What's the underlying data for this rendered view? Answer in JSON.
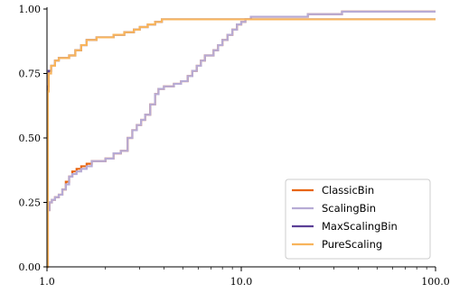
{
  "chart_data": {
    "type": "line",
    "step": true,
    "x_scale": "log",
    "xlim": [
      1.0,
      100.0
    ],
    "ylim": [
      0.0,
      1.0
    ],
    "x_ticks": [
      1.0,
      10.0,
      100.0
    ],
    "x_tick_labels": [
      "1.0",
      "10.0",
      "100.0"
    ],
    "y_ticks": [
      0.0,
      0.25,
      0.5,
      0.75,
      1.0
    ],
    "y_tick_labels": [
      "0.00",
      "0.25",
      "0.50",
      "0.75",
      "1.00"
    ],
    "grid": false,
    "legend_position": "lower-right",
    "series": [
      {
        "name": "ClassicBin",
        "color": "#e8650e",
        "x": [
          1.0,
          1.01,
          1.03,
          1.06,
          1.1,
          1.15,
          1.2,
          1.25,
          1.3,
          1.35,
          1.42,
          1.5,
          1.6,
          1.7,
          1.85,
          2.0,
          2.2,
          2.4,
          2.6,
          2.75,
          2.9,
          3.05,
          3.2,
          3.4,
          3.6,
          3.75,
          3.85,
          4.0,
          4.2,
          4.5,
          4.9,
          5.3,
          5.6,
          5.9,
          6.2,
          6.5,
          6.8,
          7.2,
          7.6,
          8.0,
          8.5,
          9.0,
          9.5,
          10.0,
          10.5,
          11.2,
          12.0,
          22.0,
          33.0,
          100.0
        ],
        "y": [
          0.0,
          0.22,
          0.25,
          0.26,
          0.27,
          0.28,
          0.3,
          0.33,
          0.35,
          0.37,
          0.38,
          0.39,
          0.4,
          0.41,
          0.41,
          0.42,
          0.44,
          0.45,
          0.5,
          0.53,
          0.55,
          0.57,
          0.59,
          0.63,
          0.67,
          0.69,
          0.69,
          0.7,
          0.7,
          0.71,
          0.72,
          0.74,
          0.76,
          0.78,
          0.8,
          0.82,
          0.82,
          0.84,
          0.86,
          0.88,
          0.9,
          0.92,
          0.94,
          0.95,
          0.96,
          0.97,
          0.97,
          0.98,
          0.99,
          0.99
        ]
      },
      {
        "name": "ScalingBin",
        "color": "#b7abd5",
        "x": [
          1.0,
          1.01,
          1.03,
          1.06,
          1.1,
          1.15,
          1.2,
          1.25,
          1.3,
          1.35,
          1.42,
          1.5,
          1.6,
          1.7,
          1.85,
          2.0,
          2.2,
          2.4,
          2.6,
          2.75,
          2.9,
          3.05,
          3.2,
          3.4,
          3.6,
          3.75,
          3.85,
          4.0,
          4.2,
          4.5,
          4.9,
          5.3,
          5.6,
          5.9,
          6.2,
          6.5,
          6.8,
          7.2,
          7.6,
          8.0,
          8.5,
          9.0,
          9.5,
          10.0,
          10.5,
          11.2,
          12.0,
          22.0,
          33.0,
          100.0
        ],
        "y": [
          0.0,
          0.22,
          0.25,
          0.26,
          0.27,
          0.28,
          0.3,
          0.32,
          0.35,
          0.36,
          0.37,
          0.38,
          0.39,
          0.41,
          0.41,
          0.42,
          0.44,
          0.45,
          0.5,
          0.53,
          0.55,
          0.57,
          0.59,
          0.63,
          0.67,
          0.69,
          0.69,
          0.7,
          0.7,
          0.71,
          0.72,
          0.74,
          0.76,
          0.78,
          0.8,
          0.82,
          0.82,
          0.84,
          0.86,
          0.88,
          0.9,
          0.92,
          0.94,
          0.95,
          0.96,
          0.97,
          0.97,
          0.98,
          0.99,
          0.99
        ]
      },
      {
        "name": "MaxScalingBin",
        "color": "#5b3f96",
        "x": [
          1.0,
          1.01,
          1.02,
          1.05,
          1.1,
          1.15,
          1.2,
          1.3,
          1.4,
          1.5,
          1.6,
          1.8,
          2.0,
          2.2,
          2.5,
          2.8,
          3.0,
          3.3,
          3.6,
          3.9,
          100.0
        ],
        "y": [
          0.0,
          0.7,
          0.76,
          0.78,
          0.8,
          0.81,
          0.81,
          0.82,
          0.84,
          0.86,
          0.88,
          0.89,
          0.89,
          0.9,
          0.91,
          0.92,
          0.93,
          0.94,
          0.95,
          0.96,
          0.96
        ]
      },
      {
        "name": "PureScaling",
        "color": "#f8b45c",
        "x": [
          1.0,
          1.01,
          1.02,
          1.05,
          1.1,
          1.15,
          1.2,
          1.3,
          1.4,
          1.5,
          1.6,
          1.8,
          2.0,
          2.2,
          2.5,
          2.8,
          3.0,
          3.3,
          3.6,
          3.9,
          100.0
        ],
        "y": [
          0.0,
          0.68,
          0.75,
          0.78,
          0.8,
          0.81,
          0.81,
          0.82,
          0.84,
          0.86,
          0.88,
          0.89,
          0.89,
          0.9,
          0.91,
          0.92,
          0.93,
          0.94,
          0.95,
          0.96,
          0.96
        ]
      }
    ]
  }
}
